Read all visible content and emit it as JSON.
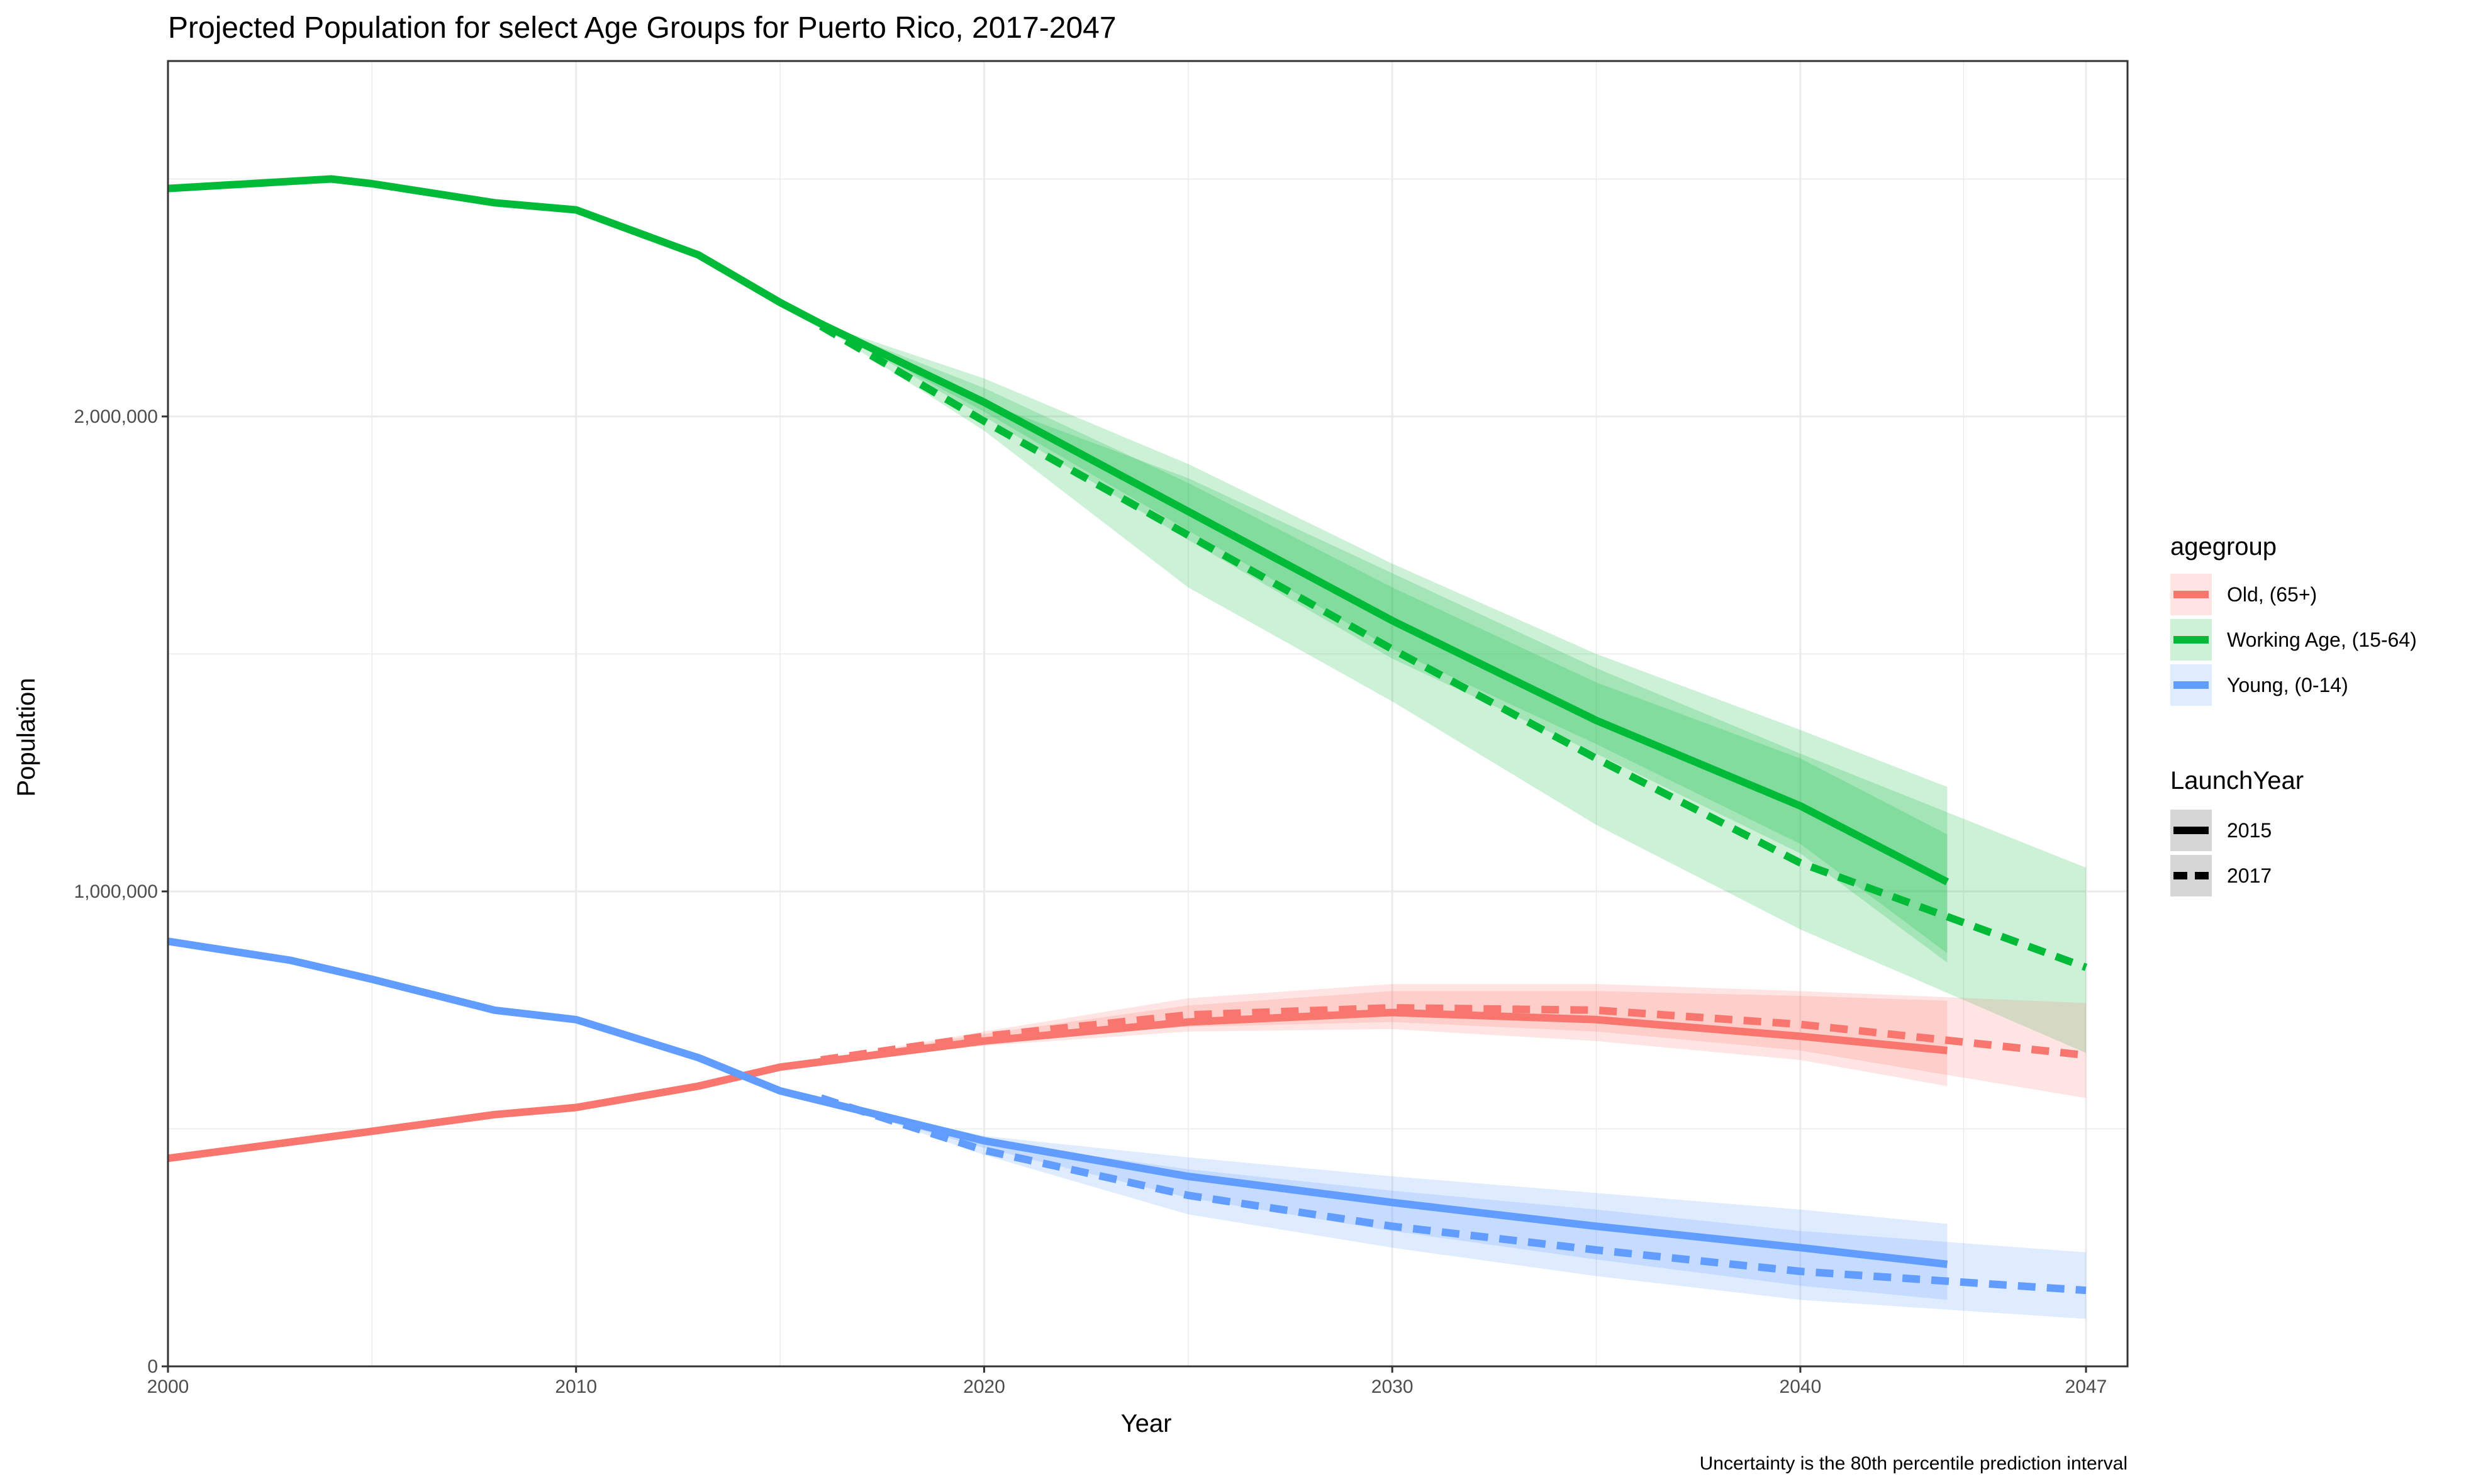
{
  "chart_data": {
    "type": "line",
    "title": "Projected Population for select Age Groups for Puerto Rico, 2017-2047",
    "xlabel": "Year",
    "ylabel": "Population",
    "caption": "Uncertainty is the 80th percentile prediction interval",
    "xlim": [
      2000,
      2047
    ],
    "ylim": [
      0,
      2500000
    ],
    "x_ticks": [
      2000,
      2010,
      2020,
      2030,
      2040,
      2047
    ],
    "x_tick_labels": [
      "2000",
      "2010",
      "2020",
      "2030",
      "2040",
      "2047"
    ],
    "y_ticks": [
      0,
      1000000,
      2000000
    ],
    "y_tick_labels": [
      "0",
      "1,000,000",
      "2,000,000"
    ],
    "x_grid_minor": [
      2005,
      2015,
      2025,
      2035,
      2044
    ],
    "y_grid_minor": [
      500000,
      1500000,
      2500000
    ],
    "grid": true,
    "legends": [
      {
        "title": "agegroup",
        "entries": [
          {
            "label": "Old, (65+)",
            "color": "#F8766D"
          },
          {
            "label": "Working Age, (15-64)",
            "color": "#00BA38"
          },
          {
            "label": "Young, (0-14)",
            "color": "#619CFF"
          }
        ]
      },
      {
        "title": "LaunchYear",
        "entries": [
          {
            "label": "2015",
            "linetype": "solid"
          },
          {
            "label": "2017",
            "linetype": "dashed"
          }
        ]
      }
    ],
    "legend_position": "right",
    "series": [
      {
        "group": "Working Age, (15-64)",
        "launch": "2015",
        "color": "#00BA38",
        "dash": false,
        "x": [
          2000,
          2004,
          2005,
          2008,
          2010,
          2013,
          2015,
          2016,
          2020,
          2025,
          2030,
          2035,
          2040,
          2043.6
        ],
        "y": [
          2480000,
          2500000,
          2490000,
          2450000,
          2435000,
          2340000,
          2240000,
          2195000,
          2030000,
          1800000,
          1570000,
          1360000,
          1180000,
          1020000
        ],
        "band_outer_low": [
          null,
          null,
          null,
          null,
          null,
          null,
          null,
          2195000,
          2000000,
          1740000,
          1490000,
          1290000,
          1080000,
          850000
        ],
        "band_outer_high": [
          null,
          null,
          null,
          null,
          null,
          null,
          null,
          2195000,
          2080000,
          1900000,
          1690000,
          1500000,
          1340000,
          1220000
        ],
        "band_inner_low": [
          null,
          null,
          null,
          null,
          null,
          null,
          null,
          2195000,
          2010000,
          1760000,
          1510000,
          1310000,
          1100000,
          870000
        ],
        "band_inner_high": [
          null,
          null,
          null,
          null,
          null,
          null,
          null,
          2195000,
          2060000,
          1860000,
          1640000,
          1440000,
          1280000,
          1120000
        ]
      },
      {
        "group": "Working Age, (15-64)",
        "launch": "2017",
        "color": "#00BA38",
        "dash": true,
        "x": [
          2016,
          2020,
          2025,
          2030,
          2035,
          2040,
          2047
        ],
        "y": [
          2190000,
          1990000,
          1750000,
          1510000,
          1280000,
          1060000,
          840000
        ],
        "band_outer_low": [
          2190000,
          1970000,
          1640000,
          1400000,
          1140000,
          920000,
          660000
        ],
        "band_outer_high": [
          2190000,
          2030000,
          1870000,
          1670000,
          1470000,
          1290000,
          1050000
        ]
      },
      {
        "group": "Old, (65+)",
        "launch": "2015",
        "color": "#F8766D",
        "dash": false,
        "x": [
          2000,
          2005,
          2008,
          2010,
          2013,
          2015,
          2020,
          2025,
          2030,
          2035,
          2040,
          2043.6
        ],
        "y": [
          438000,
          495000,
          530000,
          545000,
          590000,
          630000,
          685000,
          725000,
          745000,
          730000,
          695000,
          665000
        ],
        "band_outer_low": [
          null,
          null,
          null,
          null,
          null,
          630000,
          675000,
          705000,
          710000,
          685000,
          645000,
          590000
        ],
        "band_outer_high": [
          null,
          null,
          null,
          null,
          null,
          630000,
          700000,
          760000,
          790000,
          790000,
          780000,
          770000
        ]
      },
      {
        "group": "Old, (65+)",
        "launch": "2017",
        "color": "#F8766D",
        "dash": true,
        "x": [
          2016,
          2020,
          2025,
          2030,
          2035,
          2040,
          2047
        ],
        "y": [
          645000,
          695000,
          740000,
          755000,
          750000,
          720000,
          655000
        ],
        "band_outer_low": [
          645000,
          685000,
          715000,
          725000,
          705000,
          665000,
          565000
        ],
        "band_outer_high": [
          645000,
          705000,
          775000,
          805000,
          805000,
          790000,
          765000
        ]
      },
      {
        "group": "Young, (0-14)",
        "launch": "2015",
        "color": "#619CFF",
        "dash": false,
        "x": [
          2000,
          2003,
          2005,
          2008,
          2010,
          2013,
          2015,
          2020,
          2025,
          2030,
          2035,
          2040,
          2043.6
        ],
        "y": [
          895000,
          855000,
          815000,
          750000,
          730000,
          650000,
          580000,
          475000,
          400000,
          345000,
          295000,
          250000,
          215000
        ],
        "band_outer_low": [
          null,
          null,
          null,
          null,
          null,
          null,
          580000,
          460000,
          355000,
          285000,
          225000,
          170000,
          140000
        ],
        "band_outer_high": [
          null,
          null,
          null,
          null,
          null,
          null,
          580000,
          485000,
          440000,
          400000,
          365000,
          330000,
          300000
        ]
      },
      {
        "group": "Young, (0-14)",
        "launch": "2017",
        "color": "#619CFF",
        "dash": true,
        "x": [
          2016,
          2020,
          2025,
          2030,
          2035,
          2040,
          2047
        ],
        "y": [
          565000,
          455000,
          360000,
          295000,
          245000,
          200000,
          160000
        ],
        "band_outer_low": [
          565000,
          445000,
          320000,
          250000,
          190000,
          140000,
          100000
        ],
        "band_outer_high": [
          565000,
          475000,
          415000,
          370000,
          330000,
          285000,
          240000
        ]
      }
    ]
  }
}
